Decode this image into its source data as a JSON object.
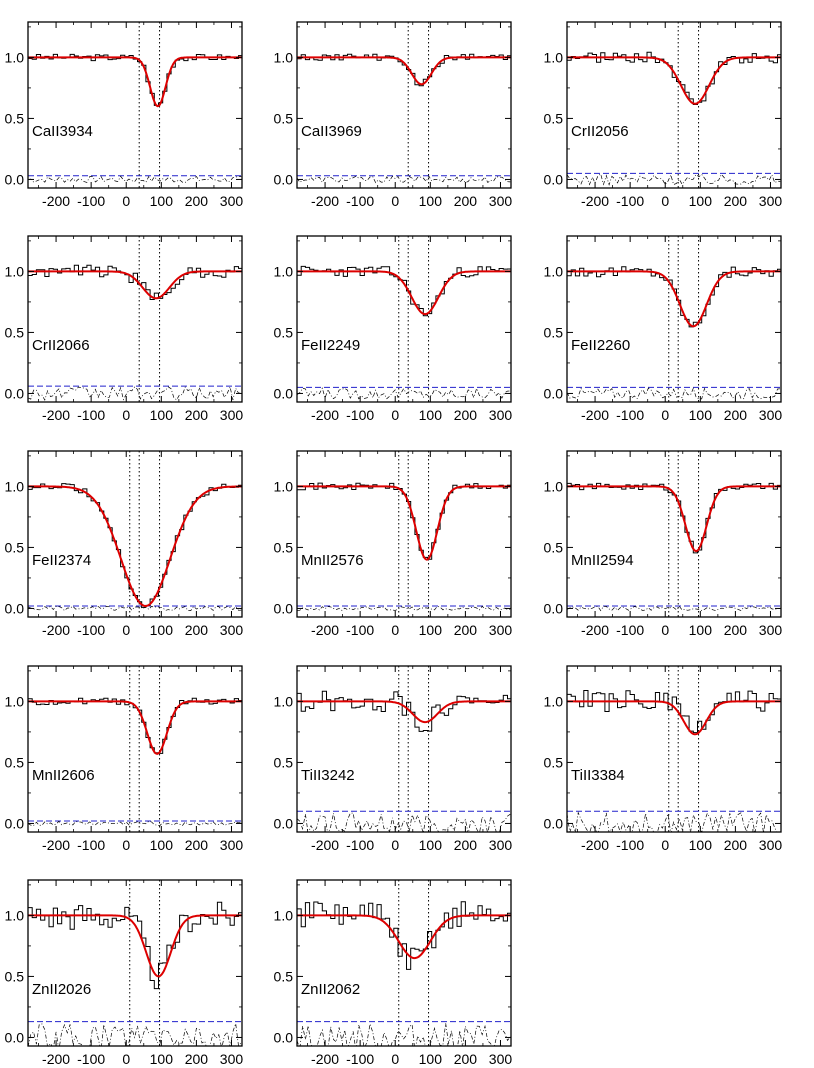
{
  "figure": {
    "colors": {
      "data": "#000000",
      "model": "#dd0000",
      "error": "#2222cc",
      "residual": "#000000",
      "component": "#000000"
    }
  },
  "chart_data": [
    {
      "type": "line",
      "label": "CaII3934",
      "xlim": [
        -280,
        330
      ],
      "ylim": [
        -0.07,
        1.29
      ],
      "xticks": [
        "-200",
        "-100",
        "0",
        "100",
        "200",
        "300"
      ],
      "yticks": [
        "0.0",
        "0.5",
        "1.0"
      ],
      "components": [
        37,
        95
      ],
      "depth": 0.4,
      "sigma": 22,
      "center": 90,
      "error_level": 0.03
    },
    {
      "type": "line",
      "label": "CaII3969",
      "xlim": [
        -280,
        330
      ],
      "ylim": [
        -0.07,
        1.29
      ],
      "xticks": [
        "-200",
        "-100",
        "0",
        "100",
        "200",
        "300"
      ],
      "yticks": [
        "0.0",
        "0.5",
        "1.0"
      ],
      "components": [
        37,
        95
      ],
      "depth": 0.22,
      "sigma": 28,
      "center": 75,
      "error_level": 0.03
    },
    {
      "type": "line",
      "label": "CrII2056",
      "xlim": [
        -280,
        330
      ],
      "ylim": [
        -0.07,
        1.29
      ],
      "xticks": [
        "-200",
        "-100",
        "0",
        "100",
        "200",
        "300"
      ],
      "yticks": [
        "0.0",
        "0.5",
        "1.0"
      ],
      "components": [
        37,
        95
      ],
      "depth": 0.38,
      "sigma": 40,
      "center": 85,
      "error_level": 0.05
    },
    {
      "type": "line",
      "label": "CrII2066",
      "xlim": [
        -280,
        330
      ],
      "ylim": [
        -0.07,
        1.29
      ],
      "xticks": [
        "-200",
        "-100",
        "0",
        "100",
        "200",
        "300"
      ],
      "yticks": [
        "0.0",
        "0.5",
        "1.0"
      ],
      "components": [
        37,
        95
      ],
      "depth": 0.22,
      "sigma": 38,
      "center": 85,
      "error_level": 0.06
    },
    {
      "type": "line",
      "label": "FeII2249",
      "xlim": [
        -280,
        330
      ],
      "ylim": [
        -0.07,
        1.29
      ],
      "xticks": [
        "-200",
        "-100",
        "0",
        "100",
        "200",
        "300"
      ],
      "yticks": [
        "0.0",
        "0.5",
        "1.0"
      ],
      "components": [
        10,
        37,
        95
      ],
      "depth": 0.35,
      "sigma": 38,
      "center": 85,
      "error_level": 0.05
    },
    {
      "type": "line",
      "label": "FeII2260",
      "xlim": [
        -280,
        330
      ],
      "ylim": [
        -0.07,
        1.29
      ],
      "xticks": [
        "-200",
        "-100",
        "0",
        "100",
        "200",
        "300"
      ],
      "yticks": [
        "0.0",
        "0.5",
        "1.0"
      ],
      "components": [
        10,
        37,
        95
      ],
      "depth": 0.45,
      "sigma": 38,
      "center": 80,
      "error_level": 0.05
    },
    {
      "type": "line",
      "label": "FeII2374",
      "xlim": [
        -280,
        330
      ],
      "ylim": [
        -0.07,
        1.29
      ],
      "xticks": [
        "-200",
        "-100",
        "0",
        "100",
        "200",
        "300"
      ],
      "yticks": [
        "0.0",
        "0.5",
        "1.0"
      ],
      "components": [
        10,
        37,
        95
      ],
      "depth": 0.98,
      "sigma": 70,
      "center": 55,
      "error_level": 0.02
    },
    {
      "type": "line",
      "label": "MnII2576",
      "xlim": [
        -280,
        330
      ],
      "ylim": [
        -0.07,
        1.29
      ],
      "xticks": [
        "-200",
        "-100",
        "0",
        "100",
        "200",
        "300"
      ],
      "yticks": [
        "0.0",
        "0.5",
        "1.0"
      ],
      "components": [
        10,
        37,
        95
      ],
      "depth": 0.6,
      "sigma": 30,
      "center": 90,
      "error_level": 0.02
    },
    {
      "type": "line",
      "label": "MnII2594",
      "xlim": [
        -280,
        330
      ],
      "ylim": [
        -0.07,
        1.29
      ],
      "xticks": [
        "-200",
        "-100",
        "0",
        "100",
        "200",
        "300"
      ],
      "yticks": [
        "0.0",
        "0.5",
        "1.0"
      ],
      "components": [
        10,
        37,
        95
      ],
      "depth": 0.53,
      "sigma": 30,
      "center": 88,
      "error_level": 0.02
    },
    {
      "type": "line",
      "label": "MnII2606",
      "xlim": [
        -280,
        330
      ],
      "ylim": [
        -0.07,
        1.29
      ],
      "xticks": [
        "-200",
        "-100",
        "0",
        "100",
        "200",
        "300"
      ],
      "yticks": [
        "0.0",
        "0.5",
        "1.0"
      ],
      "components": [
        10,
        37,
        95
      ],
      "depth": 0.43,
      "sigma": 28,
      "center": 88,
      "error_level": 0.02
    },
    {
      "type": "line",
      "label": "TiII3242",
      "xlim": [
        -280,
        330
      ],
      "ylim": [
        -0.07,
        1.29
      ],
      "xticks": [
        "-200",
        "-100",
        "0",
        "100",
        "200",
        "300"
      ],
      "yticks": [
        "0.0",
        "0.5",
        "1.0"
      ],
      "components": [
        10,
        37,
        95
      ],
      "depth": 0.17,
      "sigma": 35,
      "center": 85,
      "error_level": 0.1
    },
    {
      "type": "line",
      "label": "TiII3384",
      "xlim": [
        -280,
        330
      ],
      "ylim": [
        -0.07,
        1.29
      ],
      "xticks": [
        "-200",
        "-100",
        "0",
        "100",
        "200",
        "300"
      ],
      "yticks": [
        "0.0",
        "0.5",
        "1.0"
      ],
      "components": [
        10,
        37,
        95
      ],
      "depth": 0.27,
      "sigma": 32,
      "center": 85,
      "error_level": 0.1
    },
    {
      "type": "line",
      "label": "ZnII2026",
      "xlim": [
        -280,
        330
      ],
      "ylim": [
        -0.07,
        1.29
      ],
      "xticks": [
        "-200",
        "-100",
        "0",
        "100",
        "200",
        "300"
      ],
      "yticks": [
        "0.0",
        "0.5",
        "1.0"
      ],
      "components": [
        10,
        95
      ],
      "depth": 0.5,
      "sigma": 35,
      "center": 92,
      "error_level": 0.13
    },
    {
      "type": "line",
      "label": "ZnII2062",
      "xlim": [
        -280,
        330
      ],
      "ylim": [
        -0.07,
        1.29
      ],
      "xticks": [
        "-200",
        "-100",
        "0",
        "100",
        "200",
        "300"
      ],
      "yticks": [
        "0.0",
        "0.5",
        "1.0"
      ],
      "components": [
        10,
        95
      ],
      "depth": 0.35,
      "sigma": 45,
      "center": 55,
      "error_level": 0.13
    }
  ]
}
